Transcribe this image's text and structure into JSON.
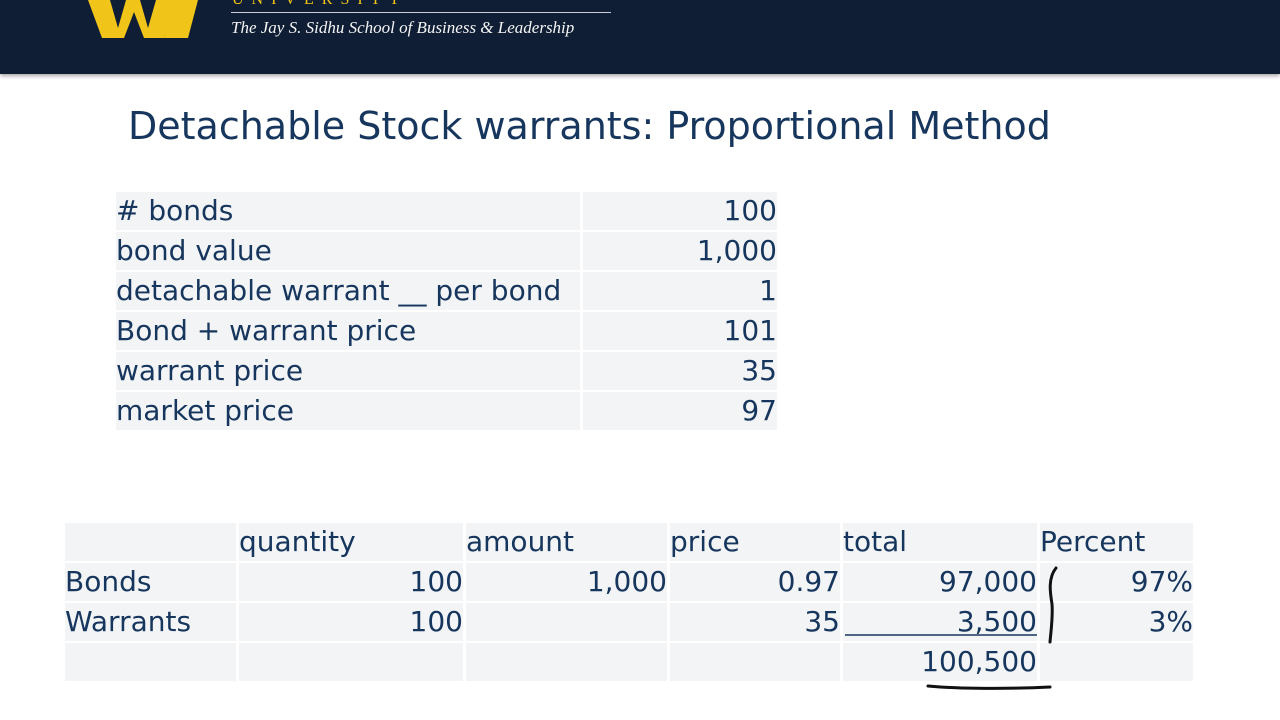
{
  "header": {
    "university_text": "UNIVERSITY",
    "school_name": "The Jay S. Sidhu School of Business & Leadership",
    "logo_icon": "university-w-logo-icon",
    "colors": {
      "banner": "#0f1e35",
      "logo": "#f0c419",
      "text": "#17365d"
    }
  },
  "slide": {
    "title": "Detachable Stock warrants: Proportional Method"
  },
  "inputs_table": {
    "rows": [
      {
        "label": "# bonds",
        "value": "100"
      },
      {
        "label": "bond value",
        "value": "1,000"
      },
      {
        "label": "detachable warrant __ per bond",
        "value": "1"
      },
      {
        "label": "Bond + warrant price",
        "value": "101"
      },
      {
        "label": "warrant price",
        "value": "35"
      },
      {
        "label": "market price",
        "value": "97"
      }
    ]
  },
  "allocation_table": {
    "headers": [
      "",
      "quantity",
      "amount",
      "price",
      "total",
      "Percent"
    ],
    "rows": [
      {
        "name": "Bonds",
        "quantity": "100",
        "amount": "1,000",
        "price": "0.97",
        "total": "97,000",
        "percent": "97%"
      },
      {
        "name": "Warrants",
        "quantity": "100",
        "amount": "",
        "price": "35",
        "total": "3,500",
        "percent": "3%"
      },
      {
        "name": "",
        "quantity": "",
        "amount": "",
        "price": "",
        "total": "100,500",
        "percent": ""
      }
    ]
  }
}
